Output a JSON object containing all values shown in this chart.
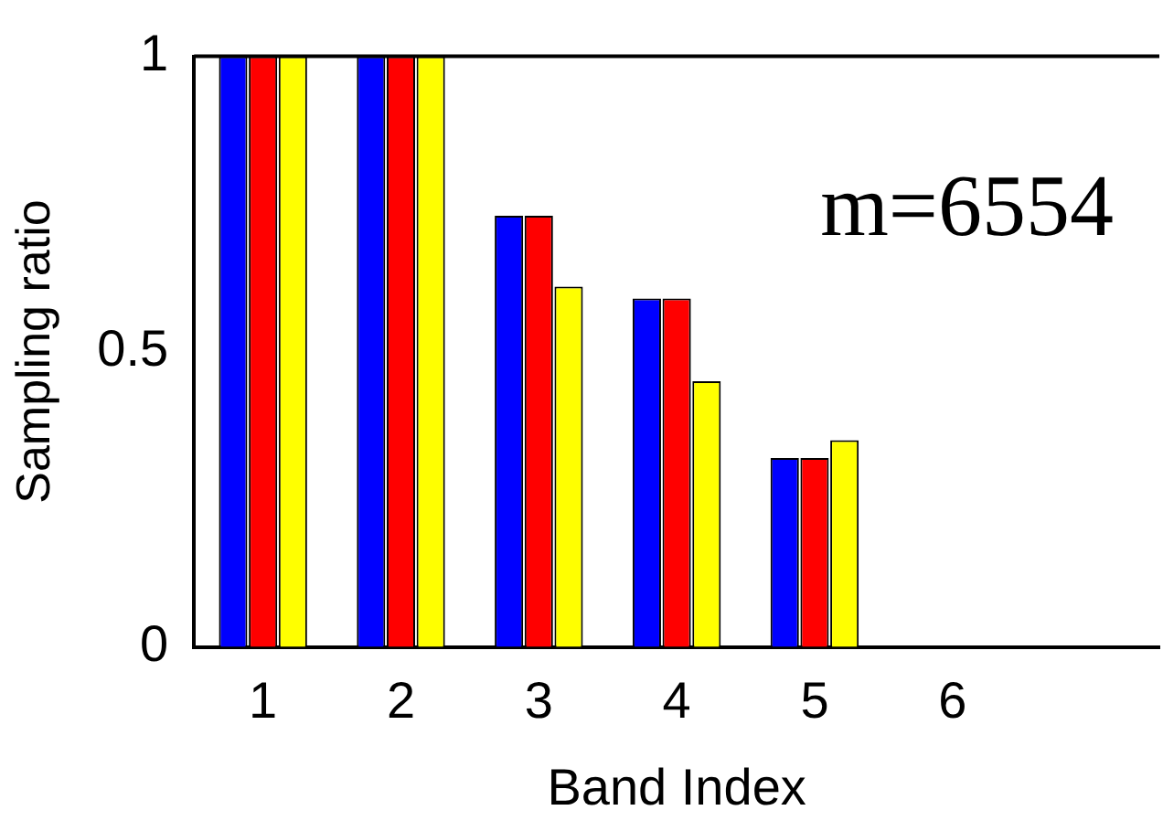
{
  "chart_data": {
    "type": "bar",
    "xlabel": "Band Index",
    "ylabel": "Sampling ratio",
    "categories": [
      "1",
      "2",
      "3",
      "4",
      "5",
      "6",
      null
    ],
    "series": [
      {
        "color": "#0000ff",
        "values": [
          1,
          1,
          0.73,
          0.59,
          0.32,
          0,
          null
        ]
      },
      {
        "color": "#ff0000",
        "values": [
          1,
          1,
          0.73,
          0.59,
          0.32,
          0,
          null
        ]
      },
      {
        "color": "#ffff00",
        "values": [
          1,
          1,
          0.61,
          0.45,
          0.35,
          null,
          null
        ]
      }
    ],
    "ylim": [
      0,
      1
    ],
    "yticks": [
      0,
      0.5,
      1
    ],
    "grid": false,
    "legend": false,
    "annotations": [
      "m=6554"
    ]
  }
}
